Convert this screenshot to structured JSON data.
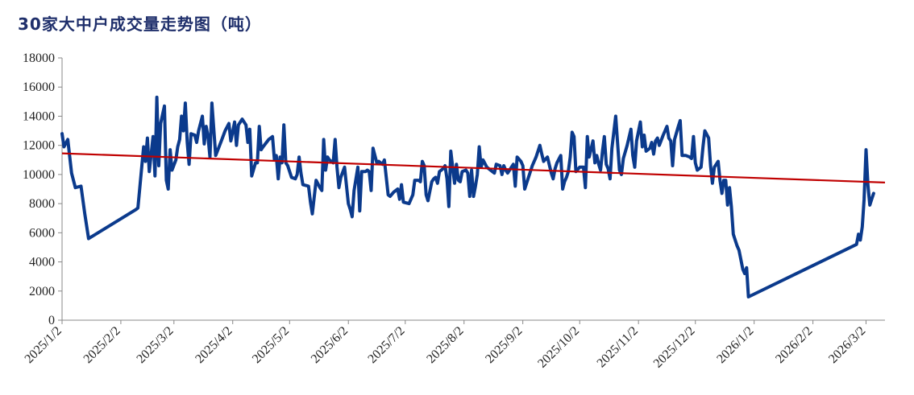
{
  "title": "30家大中户成交量走势图（吨）",
  "chart_data": {
    "type": "line",
    "title": "30家大中户成交量走势图（吨）",
    "xlabel": "",
    "ylabel": "",
    "ylim": [
      0,
      18000
    ],
    "yticks": [
      0,
      2000,
      4000,
      6000,
      8000,
      10000,
      12000,
      14000,
      16000,
      18000
    ],
    "x_start": "2025-01-02",
    "x_end": "2026-03-12",
    "xticks": [
      "2025/1/2",
      "2025/2/2",
      "2025/3/2",
      "2025/4/2",
      "2025/5/2",
      "2025/6/2",
      "2025/7/2",
      "2025/8/2",
      "2025/9/2",
      "2025/10/2",
      "2025/11/2",
      "2025/12/2",
      "2026/1/2",
      "2026/2/2",
      "2026/3/2"
    ],
    "grid": false,
    "legend": "none",
    "series": [
      {
        "name": "",
        "color": "#0b3a8c",
        "points": [
          [
            "2025-01-02",
            12800
          ],
          [
            "2025-01-03",
            11900
          ],
          [
            "2025-01-05",
            12400
          ],
          [
            "2025-01-07",
            10100
          ],
          [
            "2025-01-09",
            9100
          ],
          [
            "2025-01-12",
            9200
          ],
          [
            "2025-01-14",
            7300
          ],
          [
            "2025-01-16",
            5600
          ],
          [
            "2025-02-10",
            7600
          ],
          [
            "2025-02-11",
            7700
          ],
          [
            "2025-02-14",
            11900
          ],
          [
            "2025-02-15",
            10900
          ],
          [
            "2025-02-16",
            12500
          ],
          [
            "2025-02-17",
            10200
          ],
          [
            "2025-02-19",
            12600
          ],
          [
            "2025-02-20",
            9900
          ],
          [
            "2025-02-21",
            15300
          ],
          [
            "2025-02-22",
            10600
          ],
          [
            "2025-02-23",
            13500
          ],
          [
            "2025-02-25",
            14700
          ],
          [
            "2025-02-26",
            9600
          ],
          [
            "2025-02-27",
            9000
          ],
          [
            "2025-02-28",
            11700
          ],
          [
            "2025-03-01",
            10300
          ],
          [
            "2025-03-03",
            11000
          ],
          [
            "2025-03-04",
            11900
          ],
          [
            "2025-03-05",
            12400
          ],
          [
            "2025-03-06",
            14000
          ],
          [
            "2025-03-07",
            13000
          ],
          [
            "2025-03-08",
            14900
          ],
          [
            "2025-03-09",
            12200
          ],
          [
            "2025-03-10",
            10700
          ],
          [
            "2025-03-11",
            12800
          ],
          [
            "2025-03-13",
            12700
          ],
          [
            "2025-03-14",
            12200
          ],
          [
            "2025-03-15",
            13000
          ],
          [
            "2025-03-17",
            14000
          ],
          [
            "2025-03-18",
            12100
          ],
          [
            "2025-03-19",
            13300
          ],
          [
            "2025-03-20",
            12600
          ],
          [
            "2025-03-21",
            11200
          ],
          [
            "2025-03-22",
            14900
          ],
          [
            "2025-03-24",
            11300
          ],
          [
            "2025-03-27",
            12300
          ],
          [
            "2025-03-29",
            13000
          ],
          [
            "2025-03-31",
            13500
          ],
          [
            "2025-04-01",
            12300
          ],
          [
            "2025-04-03",
            13600
          ],
          [
            "2025-04-04",
            12000
          ],
          [
            "2025-04-05",
            13400
          ],
          [
            "2025-04-07",
            13800
          ],
          [
            "2025-04-09",
            13400
          ],
          [
            "2025-04-10",
            12200
          ],
          [
            "2025-04-11",
            13100
          ],
          [
            "2025-04-12",
            9900
          ],
          [
            "2025-04-14",
            10800
          ],
          [
            "2025-04-15",
            10800
          ],
          [
            "2025-04-16",
            13300
          ],
          [
            "2025-04-17",
            11700
          ],
          [
            "2025-04-18",
            11900
          ],
          [
            "2025-04-21",
            12400
          ],
          [
            "2025-04-23",
            12600
          ],
          [
            "2025-04-24",
            11000
          ],
          [
            "2025-04-25",
            11300
          ],
          [
            "2025-04-26",
            9700
          ],
          [
            "2025-04-27",
            11200
          ],
          [
            "2025-04-28",
            10800
          ],
          [
            "2025-04-29",
            13400
          ],
          [
            "2025-04-30",
            10800
          ],
          [
            "2025-05-01",
            10600
          ],
          [
            "2025-05-03",
            9800
          ],
          [
            "2025-05-05",
            9700
          ],
          [
            "2025-05-06",
            10000
          ],
          [
            "2025-05-07",
            11200
          ],
          [
            "2025-05-08",
            10100
          ],
          [
            "2025-05-09",
            9300
          ],
          [
            "2025-05-12",
            9200
          ],
          [
            "2025-05-13",
            8100
          ],
          [
            "2025-05-14",
            7300
          ],
          [
            "2025-05-16",
            9600
          ],
          [
            "2025-05-18",
            9100
          ],
          [
            "2025-05-19",
            8900
          ],
          [
            "2025-05-20",
            12400
          ],
          [
            "2025-05-21",
            10300
          ],
          [
            "2025-05-22",
            11200
          ],
          [
            "2025-05-23",
            11000
          ],
          [
            "2025-05-25",
            10800
          ],
          [
            "2025-05-26",
            12400
          ],
          [
            "2025-05-27",
            10500
          ],
          [
            "2025-05-28",
            9100
          ],
          [
            "2025-05-29",
            9800
          ],
          [
            "2025-05-31",
            10500
          ],
          [
            "2025-06-02",
            8000
          ],
          [
            "2025-06-03",
            7600
          ],
          [
            "2025-06-04",
            7100
          ],
          [
            "2025-06-05",
            8900
          ],
          [
            "2025-06-07",
            10500
          ],
          [
            "2025-06-08",
            7500
          ],
          [
            "2025-06-09",
            10200
          ],
          [
            "2025-06-11",
            10200
          ],
          [
            "2025-06-12",
            10300
          ],
          [
            "2025-06-13",
            10200
          ],
          [
            "2025-06-14",
            8900
          ],
          [
            "2025-06-15",
            11800
          ],
          [
            "2025-06-17",
            10800
          ],
          [
            "2025-06-18",
            10900
          ],
          [
            "2025-06-20",
            10700
          ],
          [
            "2025-06-21",
            11000
          ],
          [
            "2025-06-23",
            8600
          ],
          [
            "2025-06-24",
            8500
          ],
          [
            "2025-06-26",
            8800
          ],
          [
            "2025-06-28",
            9000
          ],
          [
            "2025-06-29",
            8300
          ],
          [
            "2025-06-30",
            9300
          ],
          [
            "2025-07-01",
            8100
          ],
          [
            "2025-07-04",
            8000
          ],
          [
            "2025-07-06",
            8600
          ],
          [
            "2025-07-07",
            9600
          ],
          [
            "2025-07-09",
            9600
          ],
          [
            "2025-07-10",
            9500
          ],
          [
            "2025-07-11",
            10900
          ],
          [
            "2025-07-12",
            10600
          ],
          [
            "2025-07-13",
            8600
          ],
          [
            "2025-07-14",
            8200
          ],
          [
            "2025-07-16",
            9500
          ],
          [
            "2025-07-17",
            9700
          ],
          [
            "2025-07-18",
            9800
          ],
          [
            "2025-07-19",
            9400
          ],
          [
            "2025-07-20",
            10200
          ],
          [
            "2025-07-22",
            10400
          ],
          [
            "2025-07-23",
            10600
          ],
          [
            "2025-07-24",
            9700
          ],
          [
            "2025-07-25",
            7800
          ],
          [
            "2025-07-26",
            11600
          ],
          [
            "2025-07-27",
            10500
          ],
          [
            "2025-07-28",
            9400
          ],
          [
            "2025-07-29",
            10700
          ],
          [
            "2025-07-30",
            9600
          ],
          [
            "2025-07-31",
            9500
          ],
          [
            "2025-08-01",
            10200
          ],
          [
            "2025-08-03",
            10300
          ],
          [
            "2025-08-04",
            10100
          ],
          [
            "2025-08-05",
            8500
          ],
          [
            "2025-08-06",
            10300
          ],
          [
            "2025-08-07",
            8500
          ],
          [
            "2025-08-08",
            9200
          ],
          [
            "2025-08-09",
            10000
          ],
          [
            "2025-08-10",
            11900
          ],
          [
            "2025-08-11",
            10500
          ],
          [
            "2025-08-12",
            11000
          ],
          [
            "2025-08-14",
            10500
          ],
          [
            "2025-08-16",
            10300
          ],
          [
            "2025-08-18",
            10100
          ],
          [
            "2025-08-19",
            10700
          ],
          [
            "2025-08-21",
            10600
          ],
          [
            "2025-08-22",
            10000
          ],
          [
            "2025-08-23",
            10600
          ],
          [
            "2025-08-24",
            10300
          ],
          [
            "2025-08-25",
            10100
          ],
          [
            "2025-08-26",
            10300
          ],
          [
            "2025-08-28",
            10700
          ],
          [
            "2025-08-29",
            9200
          ],
          [
            "2025-08-30",
            11200
          ],
          [
            "2025-09-01",
            10900
          ],
          [
            "2025-09-02",
            10600
          ],
          [
            "2025-09-03",
            9000
          ],
          [
            "2025-09-05",
            9800
          ],
          [
            "2025-09-07",
            10600
          ],
          [
            "2025-09-09",
            11200
          ],
          [
            "2025-09-11",
            12000
          ],
          [
            "2025-09-12",
            11400
          ],
          [
            "2025-09-13",
            10900
          ],
          [
            "2025-09-15",
            11200
          ],
          [
            "2025-09-17",
            10100
          ],
          [
            "2025-09-18",
            9700
          ],
          [
            "2025-09-19",
            10400
          ],
          [
            "2025-09-20",
            10800
          ],
          [
            "2025-09-22",
            11300
          ],
          [
            "2025-09-23",
            9000
          ],
          [
            "2025-09-24",
            9500
          ],
          [
            "2025-09-25",
            9800
          ],
          [
            "2025-09-26",
            10200
          ],
          [
            "2025-09-27",
            11200
          ],
          [
            "2025-09-28",
            12900
          ],
          [
            "2025-09-29",
            12600
          ],
          [
            "2025-09-30",
            10200
          ],
          [
            "2025-10-02",
            10500
          ],
          [
            "2025-10-04",
            10500
          ],
          [
            "2025-10-05",
            9100
          ],
          [
            "2025-10-06",
            12600
          ],
          [
            "2025-10-07",
            11200
          ],
          [
            "2025-10-09",
            12300
          ],
          [
            "2025-10-10",
            10800
          ],
          [
            "2025-10-11",
            11300
          ],
          [
            "2025-10-12",
            10700
          ],
          [
            "2025-10-13",
            10300
          ],
          [
            "2025-10-14",
            11600
          ],
          [
            "2025-10-15",
            12600
          ],
          [
            "2025-10-16",
            10700
          ],
          [
            "2025-10-17",
            10400
          ],
          [
            "2025-10-18",
            9700
          ],
          [
            "2025-10-19",
            11800
          ],
          [
            "2025-10-21",
            14000
          ],
          [
            "2025-10-23",
            10300
          ],
          [
            "2025-10-24",
            10000
          ],
          [
            "2025-10-25",
            11100
          ],
          [
            "2025-10-27",
            12000
          ],
          [
            "2025-10-29",
            13100
          ],
          [
            "2025-10-30",
            11300
          ],
          [
            "2025-10-31",
            10500
          ],
          [
            "2025-11-01",
            12300
          ],
          [
            "2025-11-03",
            13600
          ],
          [
            "2025-11-04",
            11900
          ],
          [
            "2025-11-05",
            12700
          ],
          [
            "2025-11-06",
            11600
          ],
          [
            "2025-11-08",
            11800
          ],
          [
            "2025-11-09",
            12200
          ],
          [
            "2025-11-10",
            11400
          ],
          [
            "2025-11-11",
            12300
          ],
          [
            "2025-11-12",
            12500
          ],
          [
            "2025-11-13",
            12000
          ],
          [
            "2025-11-15",
            12700
          ],
          [
            "2025-11-17",
            13300
          ],
          [
            "2025-11-18",
            12500
          ],
          [
            "2025-11-19",
            12300
          ],
          [
            "2025-11-20",
            10600
          ],
          [
            "2025-11-21",
            12400
          ],
          [
            "2025-11-23",
            13300
          ],
          [
            "2025-11-24",
            13700
          ],
          [
            "2025-11-25",
            11300
          ],
          [
            "2025-11-27",
            11300
          ],
          [
            "2025-11-29",
            11200
          ],
          [
            "2025-11-30",
            11100
          ],
          [
            "2025-12-01",
            12600
          ],
          [
            "2025-12-02",
            10800
          ],
          [
            "2025-12-03",
            10300
          ],
          [
            "2025-12-05",
            10500
          ],
          [
            "2025-12-06",
            11900
          ],
          [
            "2025-12-07",
            13000
          ],
          [
            "2025-12-09",
            12500
          ],
          [
            "2025-12-10",
            10600
          ],
          [
            "2025-12-11",
            9400
          ],
          [
            "2025-12-12",
            10500
          ],
          [
            "2025-12-14",
            10900
          ],
          [
            "2025-12-15",
            9600
          ],
          [
            "2025-12-16",
            8700
          ],
          [
            "2025-12-17",
            9600
          ],
          [
            "2025-12-18",
            9600
          ],
          [
            "2025-12-19",
            7900
          ],
          [
            "2025-12-20",
            9100
          ],
          [
            "2025-12-21",
            7800
          ],
          [
            "2025-12-22",
            5900
          ],
          [
            "2025-12-24",
            5100
          ],
          [
            "2025-12-25",
            4800
          ],
          [
            "2025-12-27",
            3500
          ],
          [
            "2025-12-28",
            3200
          ],
          [
            "2025-12-29",
            3600
          ],
          [
            "2025-12-30",
            1600
          ],
          [
            "2026-02-25",
            5200
          ],
          [
            "2026-02-26",
            5900
          ],
          [
            "2026-02-27",
            5500
          ],
          [
            "2026-02-28",
            6400
          ],
          [
            "2026-03-01",
            8300
          ],
          [
            "2026-03-02",
            11700
          ],
          [
            "2026-03-03",
            9300
          ],
          [
            "2026-03-04",
            7900
          ],
          [
            "2026-03-05",
            8300
          ],
          [
            "2026-03-06",
            8700
          ]
        ]
      }
    ],
    "trendline": {
      "color": "#c00000",
      "start": [
        "2025-01-02",
        11450
      ],
      "end": [
        "2026-03-12",
        9450
      ]
    }
  }
}
